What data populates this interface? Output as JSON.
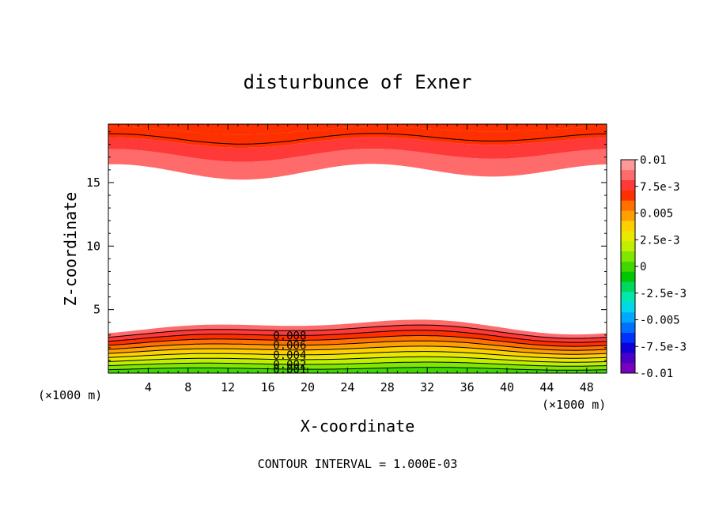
{
  "chart_data": {
    "type": "contour",
    "title": "disturbunce of Exner",
    "xlabel": "X-coordinate",
    "ylabel": "Z-coordinate",
    "x_unit_left": "(×1000 m)",
    "x_unit_right": "(×1000 m)",
    "xlim": [
      0,
      50
    ],
    "ylim": [
      0,
      19.6
    ],
    "x_ticks": [
      4,
      8,
      12,
      16,
      20,
      24,
      28,
      32,
      36,
      40,
      44,
      48
    ],
    "y_ticks": [
      5,
      10,
      15
    ],
    "colorbar": {
      "tick_labels": [
        "0.01",
        "7.5e-3",
        "0.005",
        "2.5e-3",
        "0",
        "-2.5e-3",
        "-0.005",
        "-7.5e-3",
        "-0.01"
      ],
      "levels": [
        -0.01,
        -0.009,
        -0.008,
        -0.007,
        -0.006,
        -0.005,
        -0.004,
        -0.003,
        -0.002,
        -0.001,
        0,
        0.001,
        0.002,
        0.003,
        0.004,
        0.005,
        0.006,
        0.007,
        0.008,
        0.009,
        0.01
      ],
      "colors": [
        "#7a00c0",
        "#4b00c8",
        "#1000d8",
        "#0030ff",
        "#0070ff",
        "#00a8ff",
        "#00d8e8",
        "#00e8b0",
        "#00d860",
        "#00c800",
        "#40d800",
        "#80e800",
        "#c0f000",
        "#e8e800",
        "#ffd000",
        "#ffa000",
        "#ff7000",
        "#ff3000",
        "#ff3838",
        "#ff6a6a",
        "#ff9898"
      ]
    },
    "contour_labels": [
      "0.008",
      "0.006",
      "0.004",
      "0.002",
      "0.001"
    ],
    "footer": "CONTOUR INTERVAL = 1.000E-03"
  }
}
